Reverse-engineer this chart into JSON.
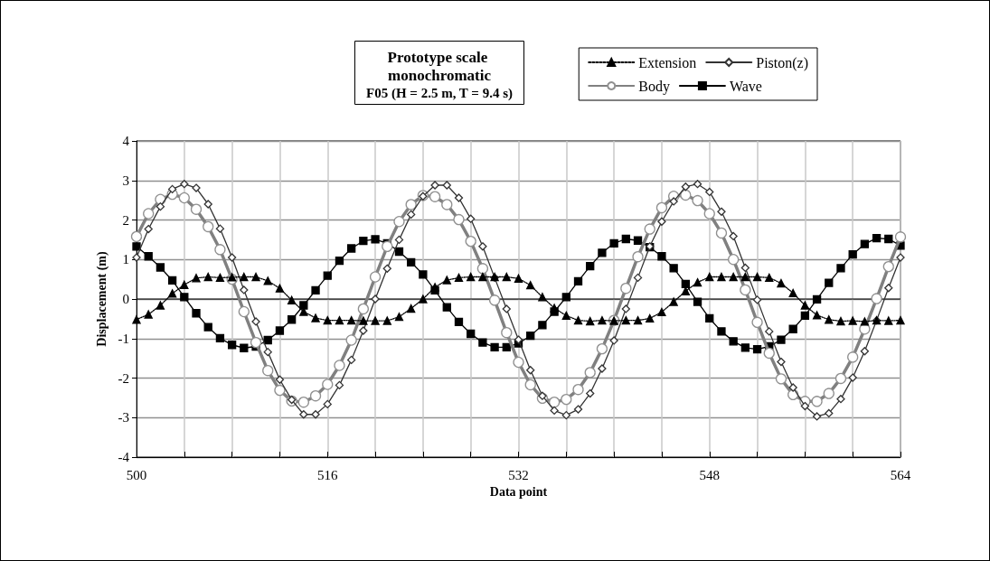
{
  "chart_data": {
    "type": "line",
    "title": "Prototype scale monochromatic",
    "subtitle": "F05 (H = 2.5 m, T = 9.4 s)",
    "xlabel": "Data point",
    "ylabel": "Displacement (m)",
    "x": [
      500,
      501,
      502,
      503,
      504,
      505,
      506,
      507,
      508,
      509,
      510,
      511,
      512,
      513,
      514,
      515,
      516,
      517,
      518,
      519,
      520,
      521,
      522,
      523,
      524,
      525,
      526,
      527,
      528,
      529,
      530,
      531,
      532,
      533,
      534,
      535,
      536,
      537,
      538,
      539,
      540,
      541,
      542,
      543,
      544,
      545,
      546,
      547,
      548,
      549,
      550,
      551,
      552,
      553,
      554,
      555,
      556,
      557,
      558,
      559,
      560,
      561,
      562,
      563,
      564
    ],
    "xlim": [
      500,
      564
    ],
    "xticks": [
      500,
      {
        "value": 504,
        "label": null
      },
      {
        "value": 508,
        "label": null
      },
      {
        "value": 512,
        "label": null
      },
      516,
      {
        "value": 520,
        "label": null
      },
      {
        "value": 524,
        "label": null
      },
      {
        "value": 528,
        "label": null
      },
      532,
      {
        "value": 536,
        "label": null
      },
      {
        "value": 540,
        "label": null
      },
      {
        "value": 544,
        "label": null
      },
      548,
      {
        "value": 552,
        "label": null
      },
      {
        "value": 556,
        "label": null
      },
      {
        "value": 560,
        "label": null
      },
      564
    ],
    "ylim": [
      -4,
      4
    ],
    "yticks": [
      -4,
      -3,
      -2,
      -1,
      0,
      1,
      2,
      3,
      4
    ],
    "grid": true,
    "legend": "top right",
    "series": [
      {
        "name": "Extension",
        "color": "#000000",
        "marker": "triangle",
        "line_style": "dotted",
        "values": [
          -0.52,
          -0.39,
          -0.16,
          0.14,
          0.36,
          0.53,
          0.56,
          0.54,
          0.55,
          0.56,
          0.56,
          0.46,
          0.27,
          -0.03,
          -0.32,
          -0.48,
          -0.54,
          -0.54,
          -0.54,
          -0.55,
          -0.55,
          -0.55,
          -0.45,
          -0.24,
          0.0,
          0.3,
          0.48,
          0.54,
          0.56,
          0.56,
          0.56,
          0.56,
          0.52,
          0.35,
          0.05,
          -0.23,
          -0.42,
          -0.54,
          -0.56,
          -0.54,
          -0.55,
          -0.54,
          -0.54,
          -0.49,
          -0.33,
          -0.07,
          0.2,
          0.42,
          0.56,
          0.56,
          0.56,
          0.56,
          0.56,
          0.54,
          0.4,
          0.15,
          -0.16,
          -0.41,
          -0.52,
          -0.56,
          -0.55,
          -0.57,
          -0.54,
          -0.55,
          -0.54
        ]
      },
      {
        "name": "Piston(z)",
        "color": "#333333",
        "marker": "diamond",
        "line_style": "solid",
        "values": [
          1.05,
          1.77,
          2.34,
          2.78,
          2.91,
          2.81,
          2.4,
          1.78,
          1.05,
          0.23,
          -0.57,
          -1.34,
          -2.04,
          -2.55,
          -2.92,
          -2.92,
          -2.66,
          -2.18,
          -1.54,
          -0.8,
          0.0,
          0.77,
          1.5,
          2.14,
          2.6,
          2.88,
          2.88,
          2.56,
          2.03,
          1.33,
          0.54,
          -0.25,
          -1.03,
          -1.8,
          -2.45,
          -2.82,
          -2.94,
          -2.79,
          -2.39,
          -1.76,
          -1.05,
          -0.25,
          0.54,
          1.33,
          1.96,
          2.47,
          2.84,
          2.91,
          2.71,
          2.21,
          1.59,
          0.79,
          -0.02,
          -0.82,
          -1.59,
          -2.24,
          -2.71,
          -2.97,
          -2.89,
          -2.53,
          -1.99,
          -1.32,
          -0.54,
          0.28,
          1.05
        ]
      },
      {
        "name": "Body",
        "color": "#808080",
        "marker": "circle",
        "line_style": "solid",
        "values": [
          1.58,
          2.16,
          2.52,
          2.65,
          2.56,
          2.27,
          1.83,
          1.25,
          0.5,
          -0.32,
          -1.1,
          -1.81,
          -2.31,
          -2.58,
          -2.61,
          -2.45,
          -2.16,
          -1.68,
          -1.04,
          -0.25,
          0.56,
          1.33,
          1.96,
          2.39,
          2.62,
          2.59,
          2.39,
          2.01,
          1.46,
          0.77,
          -0.03,
          -0.85,
          -1.6,
          -2.17,
          -2.51,
          -2.61,
          -2.54,
          -2.29,
          -1.86,
          -1.26,
          -0.54,
          0.27,
          1.07,
          1.77,
          2.31,
          2.6,
          2.63,
          2.49,
          2.16,
          1.67,
          1.0,
          0.23,
          -0.59,
          -1.37,
          -2.02,
          -2.42,
          -2.59,
          -2.59,
          -2.39,
          -2.01,
          -1.47,
          -0.76,
          0.01,
          0.82,
          1.57
        ]
      },
      {
        "name": "Wave",
        "color": "#000000",
        "marker": "square",
        "line_style": "solid",
        "values": [
          1.33,
          1.08,
          0.8,
          0.47,
          0.05,
          -0.36,
          -0.71,
          -0.99,
          -1.16,
          -1.24,
          -1.2,
          -1.04,
          -0.8,
          -0.52,
          -0.16,
          0.22,
          0.59,
          0.97,
          1.28,
          1.47,
          1.51,
          1.41,
          1.2,
          0.93,
          0.62,
          0.22,
          -0.21,
          -0.58,
          -0.88,
          -1.1,
          -1.22,
          -1.22,
          -1.12,
          -0.93,
          -0.66,
          -0.32,
          0.05,
          0.45,
          0.83,
          1.17,
          1.41,
          1.52,
          1.48,
          1.31,
          1.08,
          0.78,
          0.38,
          -0.07,
          -0.49,
          -0.82,
          -1.07,
          -1.23,
          -1.27,
          -1.2,
          -1.03,
          -0.76,
          -0.42,
          -0.01,
          0.41,
          0.78,
          1.13,
          1.39,
          1.54,
          1.52,
          1.35
        ]
      }
    ]
  }
}
